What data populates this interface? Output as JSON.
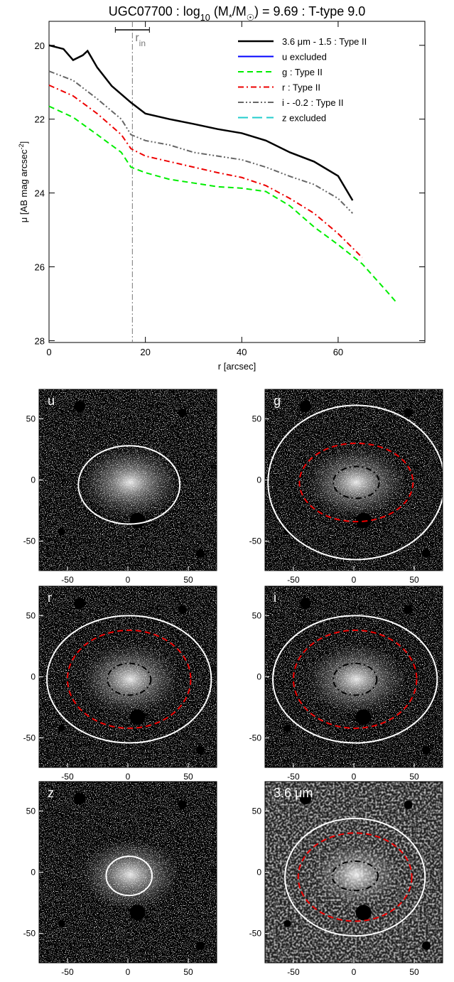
{
  "chart_data": [
    {
      "type": "line",
      "title": [
        {
          "text": "UGC07700 : log"
        },
        {
          "text": "10",
          "sub": true
        },
        {
          "text": " (M"
        },
        {
          "text": "*",
          "sub": true
        },
        {
          "text": "/M"
        },
        {
          "text": "☉",
          "sub": true
        },
        {
          "text": ") = 9.69 : T-type 9.0"
        }
      ],
      "x_label": "r [arcsec]",
      "y_label": [
        {
          "text": "μ [AB mag arcsec"
        },
        {
          "text": "-2",
          "sup": true
        },
        {
          "text": "]"
        }
      ],
      "xlim": [
        0,
        78
      ],
      "ylim": [
        19.35,
        28.05
      ],
      "y_inverted": true,
      "xticks": [
        0,
        20,
        40,
        60
      ],
      "yticks": [
        20,
        22,
        24,
        26,
        28
      ],
      "legend": "upper right",
      "annotation": {
        "text": "r",
        "sub": "in",
        "x": 17.3,
        "color": "#777777"
      },
      "series": [
        {
          "name": "3.6 μm - 1.5 : Type II",
          "color": "#000000",
          "dash": "solid",
          "width": 2.5,
          "x": [
            0,
            3,
            5,
            7,
            8,
            10,
            13,
            17,
            20,
            25,
            30,
            35,
            40,
            45,
            50,
            55,
            60,
            63
          ],
          "values": [
            20.0,
            20.1,
            20.4,
            20.27,
            20.15,
            20.6,
            21.1,
            21.55,
            21.85,
            22.0,
            22.13,
            22.27,
            22.38,
            22.58,
            22.9,
            23.15,
            23.54,
            24.2
          ]
        },
        {
          "name": "u excluded",
          "color": "#0000ff",
          "dash": "solid",
          "width": 2
        },
        {
          "name": "g : Type II",
          "color": "#00ee00",
          "dash": "dashed",
          "width": 2,
          "x": [
            0,
            5,
            10,
            15,
            17,
            20,
            25,
            30,
            35,
            40,
            45,
            50,
            55,
            60,
            65,
            70,
            72
          ],
          "values": [
            21.65,
            21.95,
            22.42,
            22.9,
            23.3,
            23.45,
            23.63,
            23.73,
            23.83,
            23.87,
            23.96,
            24.35,
            24.92,
            25.4,
            25.92,
            26.65,
            26.95
          ]
        },
        {
          "name": "r : Type II",
          "color": "#ee0000",
          "dash": "dash-dot",
          "width": 2,
          "x": [
            0,
            5,
            10,
            15,
            17,
            20,
            25,
            30,
            35,
            40,
            45,
            50,
            55,
            60,
            65
          ],
          "values": [
            21.08,
            21.37,
            21.85,
            22.42,
            22.8,
            23.0,
            23.15,
            23.3,
            23.45,
            23.58,
            23.8,
            24.15,
            24.55,
            25.1,
            25.75
          ]
        },
        {
          "name": "i - -0.2 : Type II",
          "color": "#666666",
          "dash": "dash-dot-dot",
          "width": 2,
          "x": [
            0,
            5,
            10,
            15,
            17,
            20,
            25,
            30,
            35,
            40,
            45,
            50,
            55,
            60,
            63
          ],
          "values": [
            20.7,
            20.95,
            21.45,
            22.0,
            22.42,
            22.58,
            22.7,
            22.9,
            23.0,
            23.1,
            23.3,
            23.55,
            23.77,
            24.15,
            24.55
          ]
        },
        {
          "name": "z excluded",
          "color": "#22cccc",
          "dash": "long-dash",
          "width": 2
        }
      ]
    },
    {
      "type": "image",
      "label": "u",
      "xlim": [
        -73.5,
        73.5
      ],
      "ylim": [
        -74,
        74
      ],
      "xticks": [
        -50,
        0,
        50
      ],
      "yticks": [
        -50,
        0,
        50
      ],
      "ellipses": [
        {
          "cx": 1,
          "cy": -4,
          "rx": 42,
          "ry": 32,
          "color": "#ffffff",
          "dash": "solid"
        }
      ]
    },
    {
      "type": "image",
      "label": "g",
      "xlim": [
        -73.5,
        73.5
      ],
      "ylim": [
        -74,
        74
      ],
      "xticks": [
        -50,
        0,
        50
      ],
      "yticks": [
        -50,
        0,
        50
      ],
      "ellipses": [
        {
          "cx": 2,
          "cy": -2,
          "rx": 73,
          "ry": 63,
          "color": "#ffffff",
          "dash": "solid"
        },
        {
          "cx": 2,
          "cy": -2,
          "rx": 47,
          "ry": 32,
          "color": "#ee0000",
          "dash": "dashed"
        },
        {
          "cx": 2,
          "cy": -2,
          "rx": 19,
          "ry": 13,
          "color": "#000000",
          "dash": "dash-dot"
        }
      ]
    },
    {
      "type": "image",
      "label": "r",
      "xlim": [
        -73.5,
        73.5
      ],
      "ylim": [
        -74,
        74
      ],
      "xticks": [
        -50,
        0,
        50
      ],
      "yticks": [
        -50,
        0,
        50
      ],
      "ellipses": [
        {
          "cx": 1,
          "cy": -2,
          "rx": 68,
          "ry": 52,
          "color": "#ffffff",
          "dash": "solid"
        },
        {
          "cx": 1,
          "cy": -2,
          "rx": 51,
          "ry": 40,
          "color": "#ee0000",
          "dash": "dashed"
        },
        {
          "cx": 1,
          "cy": -2,
          "rx": 18,
          "ry": 13,
          "color": "#000000",
          "dash": "dash-dot"
        }
      ]
    },
    {
      "type": "image",
      "label": "i",
      "xlim": [
        -73.5,
        73.5
      ],
      "ylim": [
        -74,
        74
      ],
      "xticks": [
        -50,
        0,
        50
      ],
      "yticks": [
        -50,
        0,
        50
      ],
      "ellipses": [
        {
          "cx": 1,
          "cy": -2,
          "rx": 68,
          "ry": 52,
          "color": "#ffffff",
          "dash": "solid"
        },
        {
          "cx": 1,
          "cy": -2,
          "rx": 51,
          "ry": 40,
          "color": "#ee0000",
          "dash": "dashed"
        },
        {
          "cx": 1,
          "cy": -2,
          "rx": 18,
          "ry": 13,
          "color": "#000000",
          "dash": "dash-dot"
        }
      ]
    },
    {
      "type": "image",
      "label": "z",
      "xlim": [
        -73.5,
        73.5
      ],
      "ylim": [
        -74,
        74
      ],
      "xticks": [
        -50,
        0,
        50
      ],
      "yticks": [
        -50,
        0,
        50
      ],
      "ellipses": [
        {
          "cx": 1,
          "cy": -3,
          "rx": 19,
          "ry": 16,
          "color": "#ffffff",
          "dash": "solid"
        }
      ]
    },
    {
      "type": "image",
      "label": "3.6 μm",
      "xlim": [
        -73.5,
        73.5
      ],
      "ylim": [
        -74,
        74
      ],
      "xticks": [
        -50,
        0,
        50
      ],
      "yticks": [
        -50,
        0,
        50
      ],
      "ellipses": [
        {
          "cx": 1,
          "cy": -4,
          "rx": 58,
          "ry": 48,
          "color": "#ffffff",
          "dash": "solid"
        },
        {
          "cx": 1,
          "cy": -4,
          "rx": 47,
          "ry": 36,
          "color": "#ee0000",
          "dash": "dashed"
        },
        {
          "cx": 1,
          "cy": -3,
          "rx": 19,
          "ry": 12,
          "color": "#000000",
          "dash": "dash-dot"
        }
      ]
    }
  ]
}
